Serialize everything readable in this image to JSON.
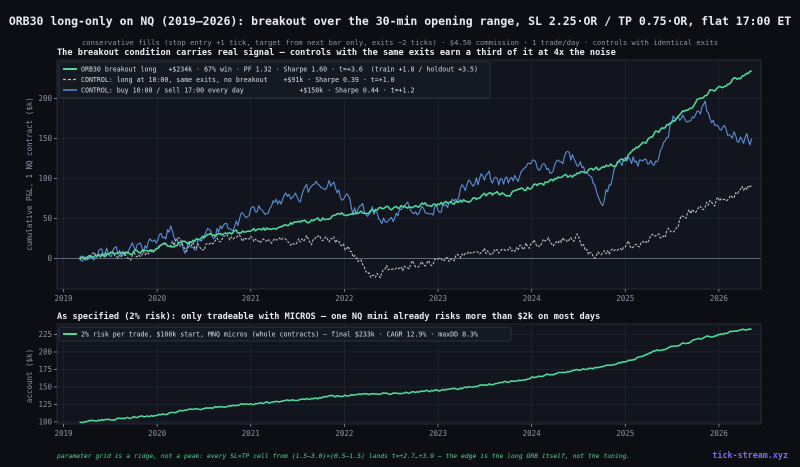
{
  "title": "ORB30 long-only on NQ (2019–2026): breakout over the 30-min opening range, SL 2.25·OR / TP 0.75·OR, flat 17:00 ET",
  "subtitle": "conservative fills (stop entry +1 tick, target from next bar only, exits −2 ticks) · $4.50 commission · 1 trade/day · controls with identical exits",
  "footer_note": "parameter grid is a ridge, not a peak: every SL×TP cell from (1.5–3.0)×(0.5–1.5) lands t=+2.7…+3.9 — the edge is the long ORB itself, not the tuning.",
  "brand": "tick-stream.xyz",
  "colors": {
    "background": "#0c0e14",
    "panel": "#12151d",
    "grid": "#262b36",
    "text": "#d8dde6",
    "muted": "#8a93a3",
    "green": "#4fd69c",
    "blue": "#5b8fd8",
    "gray": "#b8bec8",
    "brand": "#7f6cf0"
  },
  "chart_data": [
    {
      "type": "line",
      "title": "The breakout condition carries real signal — controls with the same exits earn a third of it at 4x the noise",
      "ylabel": "cumulative P&L, 1 NQ contract ($k)",
      "x_ticks": [
        "2019",
        "2020",
        "2021",
        "2022",
        "2023",
        "2024",
        "2025",
        "2026"
      ],
      "y_ticks": [
        0,
        50,
        100,
        150,
        200
      ],
      "xlim": [
        2018.93,
        2026.45
      ],
      "ylim": [
        -38,
        248
      ],
      "zero_line": true,
      "grid": true,
      "legend_position": "top-left",
      "series": [
        {
          "name": "ORB30 breakout long   +$234k · 67% win · PF 1.32 · Sharpe 1.60 · t=+3.6  (train +1.8 / holdout +3.5)",
          "color": "green",
          "style": "solid",
          "points": [
            [
              2019.17,
              0
            ],
            [
              2019.5,
              5
            ],
            [
              2019.8,
              10
            ],
            [
              2020.0,
              14
            ],
            [
              2020.3,
              22
            ],
            [
              2020.6,
              28
            ],
            [
              2020.9,
              33
            ],
            [
              2021.2,
              38
            ],
            [
              2021.5,
              45
            ],
            [
              2021.8,
              50
            ],
            [
              2022.0,
              55
            ],
            [
              2022.3,
              60
            ],
            [
              2022.5,
              63
            ],
            [
              2022.8,
              67
            ],
            [
              2023.0,
              68
            ],
            [
              2023.3,
              72
            ],
            [
              2023.6,
              80
            ],
            [
              2023.8,
              82
            ],
            [
              2024.0,
              90
            ],
            [
              2024.3,
              100
            ],
            [
              2024.6,
              108
            ],
            [
              2024.9,
              118
            ],
            [
              2025.0,
              123
            ],
            [
              2025.3,
              155
            ],
            [
              2025.5,
              170
            ],
            [
              2025.7,
              190
            ],
            [
              2025.9,
              210
            ],
            [
              2026.0,
              215
            ],
            [
              2026.2,
              225
            ],
            [
              2026.35,
              234
            ]
          ]
        },
        {
          "name": "CONTROL: long at 10:00, same exits, no breakout    +$91k · Sharpe 0.39 · t=+1.0",
          "color": "gray",
          "style": "dashed",
          "points": [
            [
              2019.17,
              0
            ],
            [
              2019.5,
              4
            ],
            [
              2019.8,
              6
            ],
            [
              2020.0,
              8
            ],
            [
              2020.2,
              20
            ],
            [
              2020.4,
              14
            ],
            [
              2020.7,
              22
            ],
            [
              2021.0,
              23
            ],
            [
              2021.3,
              22
            ],
            [
              2021.6,
              24
            ],
            [
              2021.9,
              20
            ],
            [
              2022.1,
              5
            ],
            [
              2022.3,
              -22
            ],
            [
              2022.45,
              -15
            ],
            [
              2022.7,
              -10
            ],
            [
              2022.9,
              -5
            ],
            [
              2023.2,
              2
            ],
            [
              2023.5,
              8
            ],
            [
              2023.8,
              12
            ],
            [
              2024.0,
              18
            ],
            [
              2024.3,
              22
            ],
            [
              2024.5,
              28
            ],
            [
              2024.65,
              0
            ],
            [
              2024.8,
              5
            ],
            [
              2025.0,
              15
            ],
            [
              2025.2,
              20
            ],
            [
              2025.4,
              30
            ],
            [
              2025.6,
              50
            ],
            [
              2025.8,
              65
            ],
            [
              2026.0,
              75
            ],
            [
              2026.2,
              85
            ],
            [
              2026.35,
              91
            ]
          ]
        },
        {
          "name": "CONTROL: buy 10:00 / sell 17:00 every day              +$150k · Sharpe 0.44 · t=+1.2",
          "color": "blue",
          "style": "solid",
          "points": [
            [
              2019.17,
              0
            ],
            [
              2019.4,
              6
            ],
            [
              2019.7,
              10
            ],
            [
              2019.9,
              15
            ],
            [
              2020.15,
              40
            ],
            [
              2020.25,
              10
            ],
            [
              2020.5,
              28
            ],
            [
              2020.8,
              40
            ],
            [
              2021.0,
              60
            ],
            [
              2021.3,
              72
            ],
            [
              2021.6,
              85
            ],
            [
              2021.9,
              95
            ],
            [
              2022.1,
              60
            ],
            [
              2022.3,
              60
            ],
            [
              2022.5,
              50
            ],
            [
              2022.7,
              68
            ],
            [
              2022.9,
              55
            ],
            [
              2023.2,
              82
            ],
            [
              2023.5,
              100
            ],
            [
              2023.8,
              95
            ],
            [
              2024.0,
              118
            ],
            [
              2024.2,
              110
            ],
            [
              2024.4,
              128
            ],
            [
              2024.6,
              110
            ],
            [
              2024.75,
              70
            ],
            [
              2024.9,
              110
            ],
            [
              2025.05,
              130
            ],
            [
              2025.2,
              118
            ],
            [
              2025.35,
              115
            ],
            [
              2025.5,
              172
            ],
            [
              2025.7,
              178
            ],
            [
              2025.85,
              192
            ],
            [
              2026.0,
              155
            ],
            [
              2026.15,
              160
            ],
            [
              2026.25,
              145
            ],
            [
              2026.35,
              150
            ]
          ]
        }
      ]
    },
    {
      "type": "line",
      "title": "As specified (2% risk): only tradeable with MICROS — one NQ mini already risks more than $2k on most days",
      "ylabel": "account ($k)",
      "x_ticks": [
        "2019",
        "2020",
        "2021",
        "2022",
        "2023",
        "2024",
        "2025",
        "2026"
      ],
      "y_ticks": [
        100,
        125,
        150,
        175,
        200,
        225
      ],
      "xlim": [
        2018.93,
        2026.45
      ],
      "ylim": [
        97,
        240
      ],
      "grid": true,
      "legend_position": "top-left",
      "series": [
        {
          "name": "2% risk per trade, $100k start, MNQ micros (whole contracts) — final $233k · CAGR 12.9% · maxDD 8.3%",
          "color": "green",
          "style": "solid",
          "points": [
            [
              2019.17,
              100
            ],
            [
              2019.5,
              104
            ],
            [
              2019.8,
              107
            ],
            [
              2020.0,
              110
            ],
            [
              2020.3,
              116
            ],
            [
              2020.6,
              120
            ],
            [
              2020.9,
              125
            ],
            [
              2021.2,
              128
            ],
            [
              2021.5,
              132
            ],
            [
              2021.8,
              135
            ],
            [
              2022.0,
              138
            ],
            [
              2022.3,
              140
            ],
            [
              2022.6,
              141
            ],
            [
              2022.9,
              144
            ],
            [
              2023.2,
              147
            ],
            [
              2023.5,
              153
            ],
            [
              2023.8,
              158
            ],
            [
              2024.0,
              163
            ],
            [
              2024.3,
              170
            ],
            [
              2024.6,
              176
            ],
            [
              2024.9,
              183
            ],
            [
              2025.1,
              190
            ],
            [
              2025.3,
              200
            ],
            [
              2025.5,
              208
            ],
            [
              2025.7,
              215
            ],
            [
              2025.9,
              222
            ],
            [
              2026.1,
              228
            ],
            [
              2026.35,
              233
            ]
          ]
        }
      ]
    }
  ]
}
